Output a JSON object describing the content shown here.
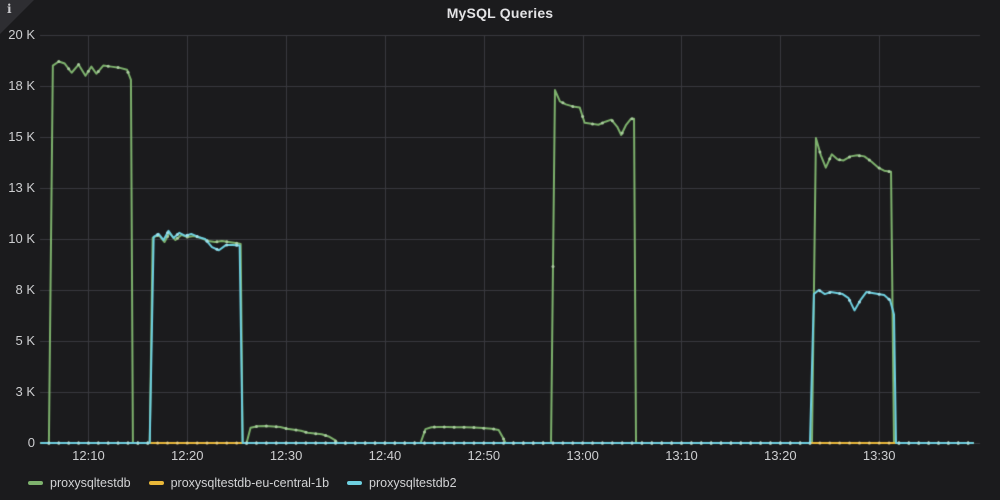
{
  "panel": {
    "title": "MySQL Queries",
    "info_icon": "i"
  },
  "legend": {
    "items": [
      {
        "label": "proxysqltestdb",
        "color": "#7EB26D"
      },
      {
        "label": "proxysqltestdb-eu-central-1b",
        "color": "#EAB839"
      },
      {
        "label": "proxysqltestdb2",
        "color": "#6ED0E0"
      }
    ]
  },
  "colors": {
    "background": "#1b1b1d",
    "grid": "#3a3a3f",
    "tick_text": "#cdced0",
    "title_text": "#e3e3e5"
  },
  "chart_data": {
    "type": "line",
    "title": "MySQL Queries",
    "xlabel": "",
    "ylabel": "",
    "grid": true,
    "legend_position": "bottom-left",
    "x_unit": "time (minutes after 12:00)",
    "x_range": [
      5.1,
      100.2
    ],
    "y_range": [
      0,
      20000
    ],
    "x_ticks": [
      {
        "t": 10,
        "label": "12:10"
      },
      {
        "t": 20,
        "label": "12:20"
      },
      {
        "t": 30,
        "label": "12:30"
      },
      {
        "t": 40,
        "label": "12:40"
      },
      {
        "t": 50,
        "label": "12:50"
      },
      {
        "t": 60,
        "label": "13:00"
      },
      {
        "t": 70,
        "label": "13:10"
      },
      {
        "t": 80,
        "label": "13:20"
      },
      {
        "t": 90,
        "label": "13:30"
      }
    ],
    "y_ticks": [
      {
        "v": 0,
        "label": "0"
      },
      {
        "v": 2500,
        "label": "3 K"
      },
      {
        "v": 5000,
        "label": "5 K"
      },
      {
        "v": 7500,
        "label": "8 K"
      },
      {
        "v": 10000,
        "label": "10 K"
      },
      {
        "v": 12500,
        "label": "13 K"
      },
      {
        "v": 15000,
        "label": "15 K"
      },
      {
        "v": 17500,
        "label": "18 K"
      },
      {
        "v": 20000,
        "label": "20 K"
      }
    ],
    "series": [
      {
        "name": "proxysqltestdb",
        "color": "#7EB26D",
        "points": [
          [
            5.2,
            0
          ],
          [
            6.0,
            0
          ],
          [
            6.4,
            18500
          ],
          [
            7.0,
            18700
          ],
          [
            7.6,
            18600
          ],
          [
            8.3,
            18150
          ],
          [
            9.0,
            18550
          ],
          [
            9.7,
            18000
          ],
          [
            10.3,
            18450
          ],
          [
            10.8,
            18100
          ],
          [
            11.5,
            18500
          ],
          [
            12.3,
            18450
          ],
          [
            13.1,
            18400
          ],
          [
            13.9,
            18300
          ],
          [
            14.3,
            17800
          ],
          [
            14.5,
            0
          ],
          [
            16.2,
            0
          ],
          [
            16.5,
            10050
          ],
          [
            17.1,
            10200
          ],
          [
            17.7,
            9850
          ],
          [
            18.2,
            10300
          ],
          [
            18.8,
            9950
          ],
          [
            19.4,
            10200
          ],
          [
            20.0,
            10100
          ],
          [
            20.7,
            10150
          ],
          [
            21.4,
            10050
          ],
          [
            22.1,
            9900
          ],
          [
            22.8,
            9850
          ],
          [
            23.5,
            9900
          ],
          [
            24.2,
            9850
          ],
          [
            24.9,
            9800
          ],
          [
            25.4,
            9750
          ],
          [
            25.6,
            0
          ],
          [
            26.0,
            0
          ],
          [
            26.4,
            750
          ],
          [
            27.1,
            820
          ],
          [
            27.9,
            830
          ],
          [
            28.7,
            810
          ],
          [
            29.4,
            780
          ],
          [
            30.1,
            700
          ],
          [
            30.8,
            650
          ],
          [
            31.5,
            600
          ],
          [
            32.2,
            500
          ],
          [
            32.9,
            460
          ],
          [
            33.6,
            430
          ],
          [
            34.3,
            320
          ],
          [
            34.9,
            150
          ],
          [
            35.2,
            0
          ],
          [
            43.6,
            0
          ],
          [
            44.1,
            680
          ],
          [
            44.7,
            770
          ],
          [
            45.4,
            790
          ],
          [
            46.3,
            780
          ],
          [
            47.2,
            775
          ],
          [
            48.1,
            770
          ],
          [
            49.0,
            760
          ],
          [
            49.9,
            730
          ],
          [
            50.8,
            700
          ],
          [
            51.5,
            640
          ],
          [
            51.9,
            300
          ],
          [
            52.2,
            0
          ],
          [
            56.8,
            0
          ],
          [
            57.2,
            17300
          ],
          [
            57.7,
            16750
          ],
          [
            58.3,
            16600
          ],
          [
            59.0,
            16500
          ],
          [
            59.7,
            16450
          ],
          [
            60.2,
            15700
          ],
          [
            60.9,
            15650
          ],
          [
            61.6,
            15600
          ],
          [
            62.3,
            15750
          ],
          [
            62.9,
            15850
          ],
          [
            63.5,
            15500
          ],
          [
            63.9,
            15100
          ],
          [
            64.4,
            15600
          ],
          [
            64.9,
            15900
          ],
          [
            65.2,
            15900
          ],
          [
            65.4,
            0
          ],
          [
            83.2,
            0
          ],
          [
            83.6,
            14950
          ],
          [
            84.1,
            14100
          ],
          [
            84.6,
            13500
          ],
          [
            85.2,
            14150
          ],
          [
            85.8,
            13900
          ],
          [
            86.4,
            13850
          ],
          [
            87.1,
            14050
          ],
          [
            87.8,
            14100
          ],
          [
            88.5,
            14050
          ],
          [
            89.2,
            13800
          ],
          [
            89.9,
            13500
          ],
          [
            90.5,
            13350
          ],
          [
            91.2,
            13300
          ],
          [
            91.5,
            0
          ],
          [
            99.5,
            0
          ]
        ]
      },
      {
        "name": "proxysqltestdb-eu-central-1b",
        "color": "#EAB839",
        "points": [
          [
            5.2,
            0
          ],
          [
            99.5,
            0
          ]
        ]
      },
      {
        "name": "proxysqltestdb2",
        "color": "#6ED0E0",
        "points": [
          [
            5.2,
            0
          ],
          [
            16.2,
            0
          ],
          [
            16.6,
            10100
          ],
          [
            17.1,
            10250
          ],
          [
            17.6,
            9950
          ],
          [
            18.1,
            10400
          ],
          [
            18.6,
            10050
          ],
          [
            19.2,
            10300
          ],
          [
            19.8,
            10150
          ],
          [
            20.4,
            10250
          ],
          [
            21.1,
            10100
          ],
          [
            21.8,
            10000
          ],
          [
            22.5,
            9600
          ],
          [
            23.2,
            9450
          ],
          [
            23.9,
            9700
          ],
          [
            24.6,
            9700
          ],
          [
            25.3,
            9680
          ],
          [
            25.6,
            0
          ],
          [
            83.0,
            0
          ],
          [
            83.4,
            7300
          ],
          [
            83.9,
            7500
          ],
          [
            84.5,
            7300
          ],
          [
            85.1,
            7400
          ],
          [
            85.7,
            7350
          ],
          [
            86.3,
            7300
          ],
          [
            86.9,
            7100
          ],
          [
            87.5,
            6500
          ],
          [
            88.1,
            7000
          ],
          [
            88.7,
            7400
          ],
          [
            89.3,
            7350
          ],
          [
            89.9,
            7300
          ],
          [
            90.5,
            7250
          ],
          [
            91.1,
            7000
          ],
          [
            91.5,
            6300
          ],
          [
            91.7,
            0
          ],
          [
            99.5,
            0
          ]
        ]
      }
    ]
  }
}
